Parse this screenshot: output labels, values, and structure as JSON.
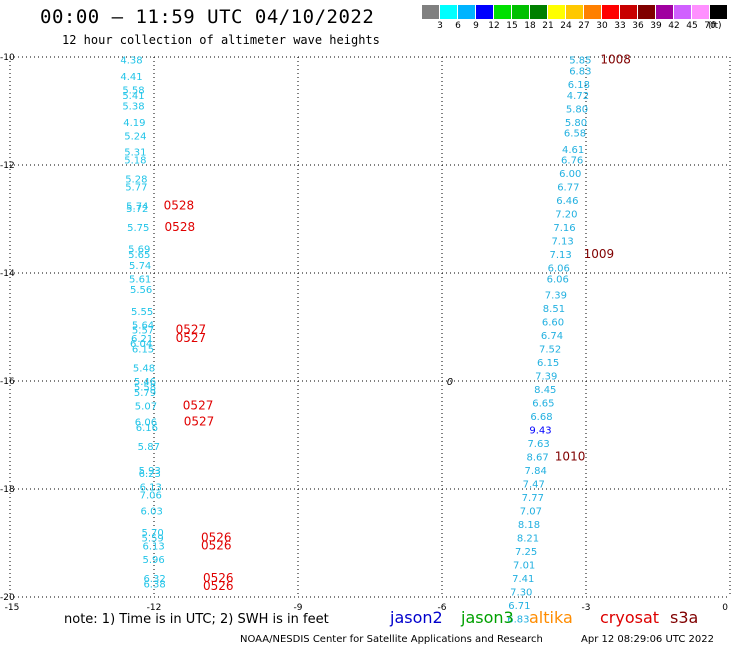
{
  "header": {
    "title": "00:00 — 11:59 UTC 04/10/2022",
    "subtitle": "12 hour collection of altimeter wave heights"
  },
  "legend": {
    "colors": [
      "#808080",
      "#00ffff",
      "#00b4ff",
      "#0000ff",
      "#00e000",
      "#00c000",
      "#008000",
      "#ffff00",
      "#ffc800",
      "#ff8000",
      "#ff0000",
      "#c80000",
      "#800000",
      "#a000a0",
      "#d060ff",
      "#ff90ff",
      "#000000"
    ],
    "labels": [
      "3",
      "6",
      "9",
      "12",
      "15",
      "18",
      "21",
      "24",
      "27",
      "30",
      "33",
      "36",
      "39",
      "42",
      "45",
      "70",
      "(ft)"
    ]
  },
  "map": {
    "lon_ticks": [
      "-15",
      "-12",
      "-9",
      "-6",
      "-3",
      "0"
    ],
    "lat_ticks": [
      "-10",
      "-12",
      "-14",
      "-16",
      "-18",
      "-20"
    ],
    "track_left": [
      {
        "lat": -10.05,
        "lon": -12.7,
        "label": "4.38"
      },
      {
        "lat": -10.35,
        "lon": -12.7,
        "label": "4.41"
      },
      {
        "lat": -10.6,
        "lon": -12.66,
        "label": "5.58"
      },
      {
        "lat": -10.7,
        "lon": -12.66,
        "label": "5.41"
      },
      {
        "lat": -10.9,
        "lon": -12.66,
        "label": "5.38"
      },
      {
        "lat": -11.2,
        "lon": -12.64,
        "label": "4.19"
      },
      {
        "lat": -11.45,
        "lon": -12.62,
        "label": "5.24"
      },
      {
        "lat": -11.75,
        "lon": -12.62,
        "label": "5.31"
      },
      {
        "lat": -11.9,
        "lon": -12.62,
        "label": "5.18"
      },
      {
        "lat": -12.25,
        "lon": -12.6,
        "label": "5.28"
      },
      {
        "lat": -12.4,
        "lon": -12.6,
        "label": "5.77"
      },
      {
        "lat": -12.75,
        "lon": -12.58,
        "label": "5.74"
      },
      {
        "lat": -12.8,
        "lon": -12.58,
        "label": "5.72"
      },
      {
        "lat": -13.15,
        "lon": -12.56,
        "label": "5.75"
      },
      {
        "lat": -13.55,
        "lon": -12.54,
        "label": "5.69"
      },
      {
        "lat": -13.65,
        "lon": -12.54,
        "label": "5.65"
      },
      {
        "lat": -13.85,
        "lon": -12.52,
        "label": "5.74"
      },
      {
        "lat": -14.1,
        "lon": -12.52,
        "label": "5.61"
      },
      {
        "lat": -14.3,
        "lon": -12.5,
        "label": "5.56"
      },
      {
        "lat": -14.7,
        "lon": -12.48,
        "label": "5.55"
      },
      {
        "lat": -14.95,
        "lon": -12.46,
        "label": "5.64"
      },
      {
        "lat": -15.05,
        "lon": -12.46,
        "label": "5.57"
      },
      {
        "lat": -15.2,
        "lon": -12.48,
        "label": "6.21"
      },
      {
        "lat": -15.3,
        "lon": -12.5,
        "label": "6.04"
      },
      {
        "lat": -15.4,
        "lon": -12.46,
        "label": "6.15"
      },
      {
        "lat": -15.75,
        "lon": -12.44,
        "label": "5.48"
      },
      {
        "lat": -16.0,
        "lon": -12.42,
        "label": "5.46"
      },
      {
        "lat": -16.1,
        "lon": -12.42,
        "label": "5.58"
      },
      {
        "lat": -16.2,
        "lon": -12.42,
        "label": "5.79"
      },
      {
        "lat": -16.45,
        "lon": -12.4,
        "label": "5.07"
      },
      {
        "lat": -16.75,
        "lon": -12.4,
        "label": "6.06"
      },
      {
        "lat": -16.85,
        "lon": -12.38,
        "label": "6.16"
      },
      {
        "lat": -17.2,
        "lon": -12.34,
        "label": "5.87"
      },
      {
        "lat": -17.65,
        "lon": -12.32,
        "label": "5.93"
      },
      {
        "lat": -17.7,
        "lon": -12.32,
        "label": "6.23"
      },
      {
        "lat": -17.95,
        "lon": -12.3,
        "label": "6.13"
      },
      {
        "lat": -18.1,
        "lon": -12.3,
        "label": "7.06"
      },
      {
        "lat": -18.4,
        "lon": -12.28,
        "label": "6.03"
      },
      {
        "lat": -18.8,
        "lon": -12.26,
        "label": "5.70"
      },
      {
        "lat": -18.9,
        "lon": -12.26,
        "label": "5.59"
      },
      {
        "lat": -19.05,
        "lon": -12.24,
        "label": "6.13"
      },
      {
        "lat": -19.3,
        "lon": -12.24,
        "label": "5.96"
      },
      {
        "lat": -19.65,
        "lon": -12.22,
        "label": "6.32"
      },
      {
        "lat": -19.75,
        "lon": -12.22,
        "label": "6.38"
      }
    ],
    "times_left": [
      {
        "lat": -12.75,
        "lon": -11.8,
        "label": "0528"
      },
      {
        "lat": -13.15,
        "lon": -11.78,
        "label": "0528"
      },
      {
        "lat": -15.05,
        "lon": -11.55,
        "label": "0527"
      },
      {
        "lat": -15.2,
        "lon": -11.55,
        "label": "0527"
      },
      {
        "lat": -16.45,
        "lon": -11.4,
        "label": "0527"
      },
      {
        "lat": -16.75,
        "lon": -11.38,
        "label": "0527"
      },
      {
        "lat": -18.9,
        "lon": -11.02,
        "label": "0526"
      },
      {
        "lat": -19.05,
        "lon": -11.02,
        "label": "0526"
      },
      {
        "lat": -19.65,
        "lon": -10.98,
        "label": "0526"
      },
      {
        "lat": -19.8,
        "lon": -10.98,
        "label": "0526"
      }
    ],
    "track_right": [
      {
        "lat": -10.05,
        "lon": -3.35,
        "label": "5.85"
      },
      {
        "lat": -10.25,
        "lon": -3.35,
        "label": "6.83"
      },
      {
        "lat": -10.5,
        "lon": -3.38,
        "label": "6.18"
      },
      {
        "lat": -10.7,
        "lon": -3.4,
        "label": "4.72"
      },
      {
        "lat": -10.95,
        "lon": -3.42,
        "label": "5.80"
      },
      {
        "lat": -11.2,
        "lon": -3.44,
        "label": "5.80"
      },
      {
        "lat": -11.4,
        "lon": -3.46,
        "label": "6.58"
      },
      {
        "lat": -11.7,
        "lon": -3.5,
        "label": "4.61"
      },
      {
        "lat": -11.9,
        "lon": -3.52,
        "label": "6.76"
      },
      {
        "lat": -12.15,
        "lon": -3.56,
        "label": "6.00"
      },
      {
        "lat": -12.4,
        "lon": -3.6,
        "label": "6.77"
      },
      {
        "lat": -12.65,
        "lon": -3.62,
        "label": "6.46"
      },
      {
        "lat": -12.9,
        "lon": -3.64,
        "label": "7.20"
      },
      {
        "lat": -13.15,
        "lon": -3.68,
        "label": "7.16"
      },
      {
        "lat": -13.4,
        "lon": -3.72,
        "label": "7.13"
      },
      {
        "lat": -13.65,
        "lon": -3.76,
        "label": "7.13"
      },
      {
        "lat": -13.9,
        "lon": -3.8,
        "label": "6.06"
      },
      {
        "lat": -14.1,
        "lon": -3.82,
        "label": "6.06"
      },
      {
        "lat": -14.4,
        "lon": -3.86,
        "label": "7.39"
      },
      {
        "lat": -14.65,
        "lon": -3.9,
        "label": "8.51"
      },
      {
        "lat": -14.9,
        "lon": -3.92,
        "label": "6.60"
      },
      {
        "lat": -15.15,
        "lon": -3.94,
        "label": "6.74"
      },
      {
        "lat": -15.4,
        "lon": -3.98,
        "label": "7.52"
      },
      {
        "lat": -15.65,
        "lon": -4.02,
        "label": "6.15"
      },
      {
        "lat": -15.9,
        "lon": -4.06,
        "label": "7.39"
      },
      {
        "lat": -16.15,
        "lon": -4.08,
        "label": "8.45"
      },
      {
        "lat": -16.4,
        "lon": -4.12,
        "label": "6.65"
      },
      {
        "lat": -16.65,
        "lon": -4.16,
        "label": "6.68"
      },
      {
        "lat": -16.9,
        "lon": -4.18,
        "label": "9.43",
        "color": "#0000ff"
      },
      {
        "lat": -17.15,
        "lon": -4.22,
        "label": "7.63"
      },
      {
        "lat": -17.4,
        "lon": -4.24,
        "label": "8.67"
      },
      {
        "lat": -17.65,
        "lon": -4.28,
        "label": "7.84"
      },
      {
        "lat": -17.9,
        "lon": -4.32,
        "label": "7.47"
      },
      {
        "lat": -18.15,
        "lon": -4.34,
        "label": "7.77"
      },
      {
        "lat": -18.4,
        "lon": -4.38,
        "label": "7.07"
      },
      {
        "lat": -18.65,
        "lon": -4.42,
        "label": "8.18"
      },
      {
        "lat": -18.9,
        "lon": -4.44,
        "label": "8.21"
      },
      {
        "lat": -19.15,
        "lon": -4.48,
        "label": "7.25"
      },
      {
        "lat": -19.4,
        "lon": -4.52,
        "label": "7.01"
      },
      {
        "lat": -19.65,
        "lon": -4.54,
        "label": "7.41"
      },
      {
        "lat": -19.9,
        "lon": -4.58,
        "label": "7.30"
      },
      {
        "lat": -20.15,
        "lon": -4.62,
        "label": "6.71"
      },
      {
        "lat": -20.4,
        "lon": -4.64,
        "label": "6.83"
      }
    ],
    "times_right": [
      {
        "lat": -10.05,
        "lon": -2.7,
        "label": "1008"
      },
      {
        "lat": -13.65,
        "lon": -3.05,
        "label": "1009"
      },
      {
        "lat": -17.4,
        "lon": -3.65,
        "label": "1010"
      }
    ],
    "marker": {
      "lat": -16.0,
      "lon": -5.9,
      "label": "0"
    }
  },
  "footer": {
    "note": "note: 1) Time is in UTC; 2) SWH is in feet",
    "satellites": [
      {
        "name": "jason2",
        "color": "#0000cc"
      },
      {
        "name": "jason3",
        "color": "#00a000"
      },
      {
        "name": "altika",
        "color": "#ff8c00"
      },
      {
        "name": "cryosat",
        "color": "#dd0000"
      },
      {
        "name": "s3a",
        "color": "#800000"
      }
    ],
    "credit": "NOAA/NESDIS Center for Satellite Applications and Research",
    "stamp": "Apr 12 08:29:06 UTC 2022"
  }
}
